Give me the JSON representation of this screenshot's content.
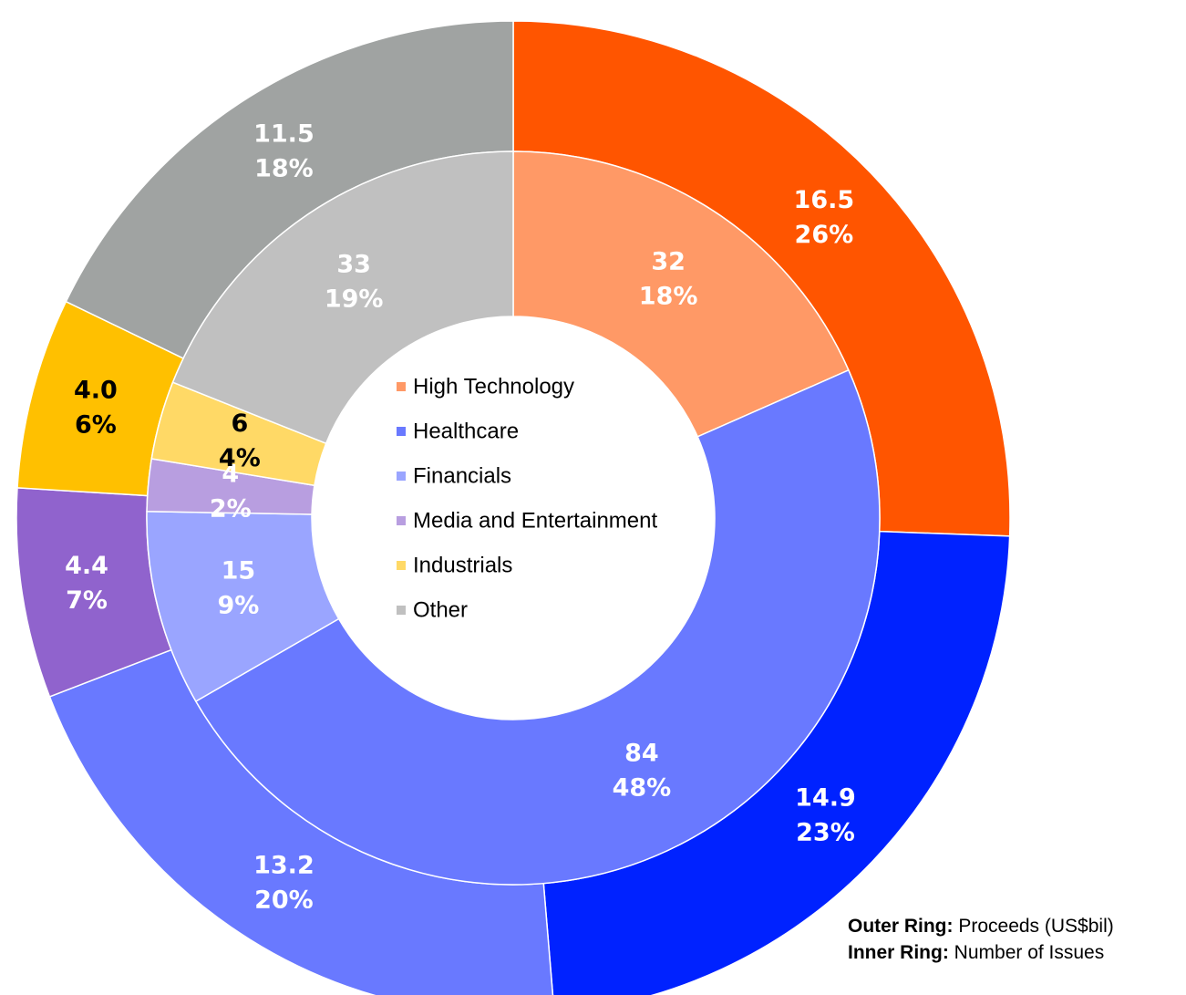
{
  "chart_data": {
    "type": "donut",
    "categories": [
      "High Technology",
      "Healthcare",
      "Financials",
      "Media and Entertainment",
      "Industrials",
      "Other"
    ],
    "legend_colors": [
      "#ff9966",
      "#6979ff",
      "#9aa5ff",
      "#b89ee0",
      "#ffd966",
      "#c0c0c0"
    ],
    "series": [
      {
        "name": "Outer Ring",
        "values": [
          16.5,
          14.9,
          13.2,
          4.4,
          4.0,
          11.5
        ],
        "value_labels": [
          "16.5",
          "14.9",
          "13.2",
          "4.4",
          "4.0",
          "11.5"
        ],
        "share_labels": [
          "26%",
          "23%",
          "20%",
          "7%",
          "6%",
          "18%"
        ],
        "colors": [
          "#ff5500",
          "#0022ff",
          "#6979ff",
          "#9063cd",
          "#ffc000",
          "#a0a3a2"
        ],
        "label_colors": [
          "#ffffff",
          "#ffffff",
          "#ffffff",
          "#ffffff",
          "#000000",
          "#ffffff"
        ]
      },
      {
        "name": "Inner Ring",
        "values": [
          32,
          84,
          15,
          4,
          6,
          33
        ],
        "value_labels": [
          "32",
          "84",
          "15",
          "4",
          "6",
          "33"
        ],
        "share_labels": [
          "18%",
          "48%",
          "9%",
          "2%",
          "4%",
          "19%"
        ],
        "colors": [
          "#ff9966",
          "#6979ff",
          "#9aa5ff",
          "#b89ee0",
          "#ffd966",
          "#c0c0c0"
        ],
        "label_colors": [
          "#ffffff",
          "#ffffff",
          "#ffffff",
          "#ffffff",
          "#000000",
          "#ffffff"
        ]
      }
    ],
    "notes": [
      {
        "key": "Outer Ring:",
        "text": "Proceeds (US$bil)"
      },
      {
        "key": "Inner Ring:",
        "text": "Number of Issues"
      }
    ]
  }
}
